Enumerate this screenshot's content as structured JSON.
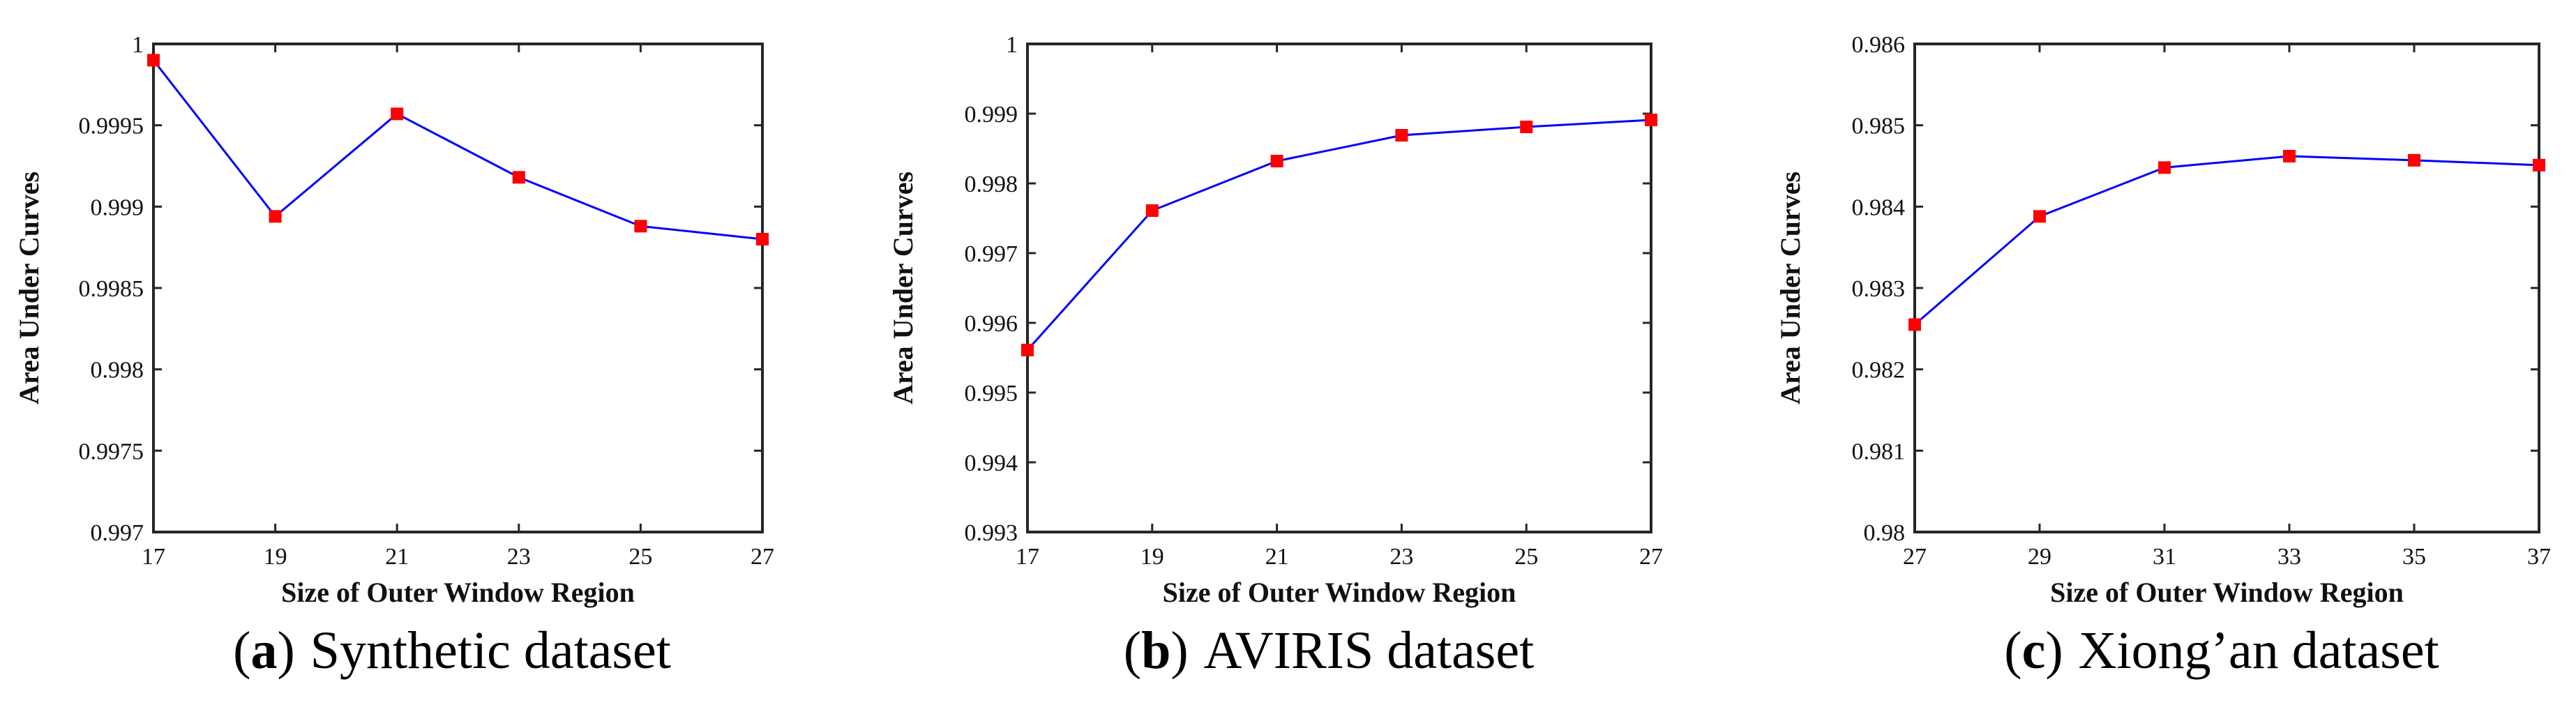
{
  "chart_data": [
    {
      "type": "line",
      "caption_letter": "a",
      "caption_text": "Synthetic dataset",
      "xlabel": "Size of Outer Window Region",
      "ylabel": "Area Under Curves",
      "x": [
        17,
        19,
        21,
        23,
        25,
        27
      ],
      "y": [
        0.9999,
        0.99894,
        0.99957,
        0.99918,
        0.99888,
        0.9988
      ],
      "xlim": [
        17,
        27
      ],
      "ylim": [
        0.997,
        1.0
      ],
      "xticks": [
        "17",
        "19",
        "21",
        "23",
        "25",
        "27"
      ],
      "yticks": [
        "0.997",
        "0.9975",
        "0.998",
        "0.9985",
        "0.999",
        "0.9995",
        "1"
      ],
      "line_color": "#0000ff",
      "marker_color": "#ff0000"
    },
    {
      "type": "line",
      "caption_letter": "b",
      "caption_text": "AVIRIS dataset",
      "xlabel": "Size of Outer Window Region",
      "ylabel": "Area Under Curves",
      "x": [
        17,
        19,
        21,
        23,
        25,
        27
      ],
      "y": [
        0.99561,
        0.99761,
        0.99832,
        0.99869,
        0.99881,
        0.99891
      ],
      "xlim": [
        17,
        27
      ],
      "ylim": [
        0.993,
        1.0
      ],
      "xticks": [
        "17",
        "19",
        "21",
        "23",
        "25",
        "27"
      ],
      "yticks": [
        "0.993",
        "0.994",
        "0.995",
        "0.996",
        "0.997",
        "0.998",
        "0.999",
        "1"
      ],
      "line_color": "#0000ff",
      "marker_color": "#ff0000"
    },
    {
      "type": "line",
      "caption_letter": "c",
      "caption_text": "Xiong’an dataset",
      "xlabel": "Size of Outer Window Region",
      "ylabel": "Area Under Curves",
      "x": [
        27,
        29,
        31,
        33,
        35,
        37
      ],
      "y": [
        0.98255,
        0.98388,
        0.98448,
        0.98462,
        0.98457,
        0.98451
      ],
      "xlim": [
        27,
        37
      ],
      "ylim": [
        0.98,
        0.986
      ],
      "xticks": [
        "27",
        "29",
        "31",
        "33",
        "35",
        "37"
      ],
      "yticks": [
        "0.98",
        "0.981",
        "0.982",
        "0.983",
        "0.984",
        "0.985",
        "0.986"
      ],
      "line_color": "#0000ff",
      "marker_color": "#ff0000"
    }
  ]
}
